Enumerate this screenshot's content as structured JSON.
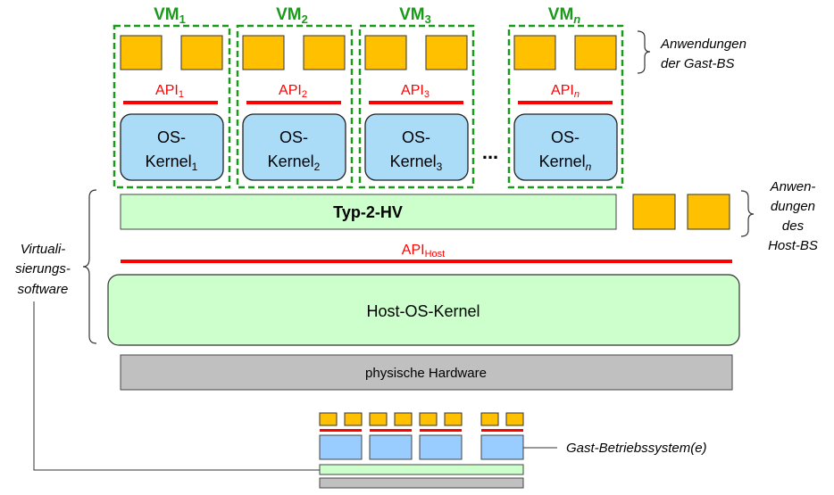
{
  "colors": {
    "app": "#ffc000",
    "kernel": "#aadcf8",
    "hypervisor": "#ccffcc",
    "hardware": "#c0c0c0",
    "api": "#ff0000",
    "vm_border": "#1a9a1a",
    "mini_kernel": "#99ccff"
  },
  "vms": [
    {
      "label": "VM",
      "sub": "1",
      "api": "API",
      "api_sub": "1",
      "kernel_line1": "OS-",
      "kernel_line2": "Kernel",
      "kernel_sub": "1"
    },
    {
      "label": "VM",
      "sub": "2",
      "api": "API",
      "api_sub": "2",
      "kernel_line1": "OS-",
      "kernel_line2": "Kernel",
      "kernel_sub": "2"
    },
    {
      "label": "VM",
      "sub": "3",
      "api": "API",
      "api_sub": "3",
      "kernel_line1": "OS-",
      "kernel_line2": "Kernel",
      "kernel_sub": "3"
    },
    {
      "label": "VM",
      "sub": "n",
      "api": "API",
      "api_sub": "n",
      "kernel_line1": "OS-",
      "kernel_line2": "Kernel",
      "kernel_sub": "n"
    }
  ],
  "ellipsis": "...",
  "guest_apps_label": [
    "Anwendungen",
    "der Gast-BS"
  ],
  "hypervisor": "Typ-2-HV",
  "host_apps_label": [
    "Anwen-",
    "dungen",
    "des",
    "Host-BS"
  ],
  "api_host": {
    "text": "API",
    "sub": "Host"
  },
  "host_kernel": "Host-OS-Kernel",
  "hardware": "physische Hardware",
  "virtualization_label": [
    "Virtuali-",
    "sierungs-",
    "software"
  ],
  "guest_os_label": "Gast-Betriebssystem(e)"
}
